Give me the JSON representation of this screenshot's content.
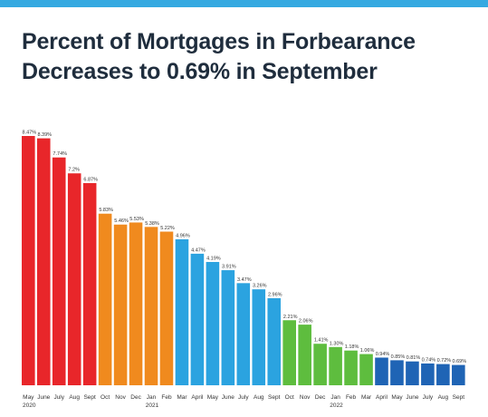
{
  "header": {
    "title_line1": "Percent of Mortgages in Forbearance",
    "title_line2": "Decreases to 0.69% in September"
  },
  "colors": {
    "top_bar": "#35a9e1",
    "title": "#1f2d3d",
    "red": "#e8262a",
    "orange": "#f08a1e",
    "blue": "#2ba3e0",
    "green": "#5ebd3e",
    "navy": "#1f64b5"
  },
  "chart_data": {
    "type": "bar",
    "title": "Percent of Mortgages in Forbearance Decreases to 0.69% in September",
    "categories": [
      "May",
      "June",
      "July",
      "Aug",
      "Sept",
      "Oct",
      "Nov",
      "Dec",
      "Jan",
      "Feb",
      "Mar",
      "April",
      "May",
      "June",
      "July",
      "Aug",
      "Sept",
      "Oct",
      "Nov",
      "Dec",
      "Jan",
      "Feb",
      "Mar",
      "April",
      "May",
      "June",
      "July",
      "Aug",
      "Sept"
    ],
    "values": [
      8.47,
      8.39,
      7.74,
      7.2,
      6.87,
      5.83,
      5.46,
      5.53,
      5.38,
      5.22,
      4.96,
      4.47,
      4.19,
      3.91,
      3.47,
      3.26,
      2.96,
      2.21,
      2.06,
      1.41,
      1.3,
      1.18,
      1.06,
      0.94,
      0.85,
      0.81,
      0.74,
      0.72,
      0.69
    ],
    "value_labels": [
      "8.47%",
      "8.39%",
      "7.74%",
      "7.2%",
      "6.87%",
      "5.83%",
      "5.46%",
      "5.53%",
      "5.38%",
      "5.22%",
      "4.96%",
      "4.47%",
      "4.19%",
      "3.91%",
      "3.47%",
      "3.26%",
      "2.96%",
      "2.21%",
      "2.06%",
      "1.41%",
      "1.30%",
      "1.18%",
      "1.06%",
      "0.94%",
      "0.85%",
      "0.81%",
      "0.74%",
      "0.72%",
      "0.69%"
    ],
    "bar_colors": [
      "red",
      "red",
      "red",
      "red",
      "red",
      "orange",
      "orange",
      "orange",
      "orange",
      "orange",
      "blue",
      "blue",
      "blue",
      "blue",
      "blue",
      "blue",
      "blue",
      "green",
      "green",
      "green",
      "green",
      "green",
      "green",
      "navy",
      "navy",
      "navy",
      "navy",
      "navy",
      "navy"
    ],
    "year_labels": [
      {
        "text": "2020",
        "index": 0
      },
      {
        "text": "2021",
        "index": 8
      },
      {
        "text": "2022",
        "index": 20
      }
    ],
    "ylim": [
      0,
      8.47
    ],
    "grid": false,
    "xlabel": "",
    "ylabel": ""
  }
}
